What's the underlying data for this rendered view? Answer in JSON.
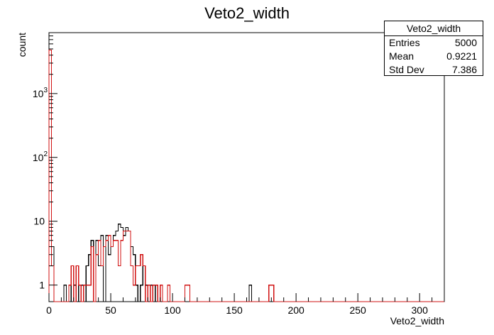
{
  "chart_data": {
    "type": "histogram",
    "title": "Veto2_width",
    "xlabel": "Veto2_width",
    "ylabel": "count",
    "xlim": [
      0,
      320
    ],
    "ylim": [
      0.55,
      9000
    ],
    "yscale": "log",
    "bin_width": 2,
    "grid": false,
    "x_ticks": [
      "0",
      "50",
      "100",
      "150",
      "200",
      "250",
      "300"
    ],
    "y_ticks": [
      {
        "base": "1",
        "exp": ""
      },
      {
        "base": "10",
        "exp": ""
      },
      {
        "base": "10",
        "exp": "2"
      },
      {
        "base": "10",
        "exp": "3"
      }
    ],
    "stats_box": {
      "title": "Veto2_width",
      "rows": [
        {
          "label": "Entries",
          "value": "5000"
        },
        {
          "label": "Mean",
          "value": "0.9221"
        },
        {
          "label": "Std Dev",
          "value": "7.386"
        }
      ]
    },
    "series": [
      {
        "color": "#000000",
        "bins": [
          {
            "x": 0,
            "y": 4800
          },
          {
            "x": 2,
            "y": 4
          },
          {
            "x": 12,
            "y": 1
          },
          {
            "x": 16,
            "y": 1
          },
          {
            "x": 20,
            "y": 1
          },
          {
            "x": 22,
            "y": 2
          },
          {
            "x": 26,
            "y": 1
          },
          {
            "x": 30,
            "y": 2
          },
          {
            "x": 32,
            "y": 3
          },
          {
            "x": 34,
            "y": 5
          },
          {
            "x": 38,
            "y": 5
          },
          {
            "x": 40,
            "y": 2
          },
          {
            "x": 42,
            "y": 6
          },
          {
            "x": 46,
            "y": 6
          },
          {
            "x": 48,
            "y": 3
          },
          {
            "x": 50,
            "y": 4
          },
          {
            "x": 52,
            "y": 6
          },
          {
            "x": 54,
            "y": 7
          },
          {
            "x": 56,
            "y": 9
          },
          {
            "x": 58,
            "y": 8
          },
          {
            "x": 60,
            "y": 6
          },
          {
            "x": 62,
            "y": 8
          },
          {
            "x": 64,
            "y": 7
          },
          {
            "x": 66,
            "y": 4
          },
          {
            "x": 68,
            "y": 3
          },
          {
            "x": 70,
            "y": 1
          },
          {
            "x": 74,
            "y": 1
          },
          {
            "x": 76,
            "y": 2
          },
          {
            "x": 78,
            "y": 1
          },
          {
            "x": 82,
            "y": 1
          },
          {
            "x": 86,
            "y": 1
          },
          {
            "x": 162,
            "y": 1
          }
        ]
      },
      {
        "color": "#d01010",
        "bins": [
          {
            "x": 0,
            "y": 4800
          },
          {
            "x": 2,
            "y": 2
          },
          {
            "x": 16,
            "y": 1
          },
          {
            "x": 18,
            "y": 2
          },
          {
            "x": 22,
            "y": 2
          },
          {
            "x": 24,
            "y": 1
          },
          {
            "x": 28,
            "y": 1
          },
          {
            "x": 30,
            "y": 1
          },
          {
            "x": 32,
            "y": 1
          },
          {
            "x": 34,
            "y": 4
          },
          {
            "x": 38,
            "y": 3
          },
          {
            "x": 40,
            "y": 5
          },
          {
            "x": 42,
            "y": 2
          },
          {
            "x": 44,
            "y": 4
          },
          {
            "x": 46,
            "y": 5
          },
          {
            "x": 48,
            "y": 6
          },
          {
            "x": 50,
            "y": 4
          },
          {
            "x": 52,
            "y": 5
          },
          {
            "x": 54,
            "y": 5
          },
          {
            "x": 56,
            "y": 2
          },
          {
            "x": 58,
            "y": 5
          },
          {
            "x": 60,
            "y": 7
          },
          {
            "x": 62,
            "y": 7
          },
          {
            "x": 64,
            "y": 7
          },
          {
            "x": 66,
            "y": 2
          },
          {
            "x": 68,
            "y": 1
          },
          {
            "x": 70,
            "y": 2
          },
          {
            "x": 72,
            "y": 2
          },
          {
            "x": 74,
            "y": 3
          },
          {
            "x": 76,
            "y": 2
          },
          {
            "x": 80,
            "y": 1
          },
          {
            "x": 84,
            "y": 1
          },
          {
            "x": 86,
            "y": 1
          },
          {
            "x": 90,
            "y": 1
          },
          {
            "x": 96,
            "y": 1
          },
          {
            "x": 110,
            "y": 1
          },
          {
            "x": 112,
            "y": 1
          },
          {
            "x": 178,
            "y": 1
          },
          {
            "x": 180,
            "y": 1
          }
        ]
      }
    ]
  }
}
